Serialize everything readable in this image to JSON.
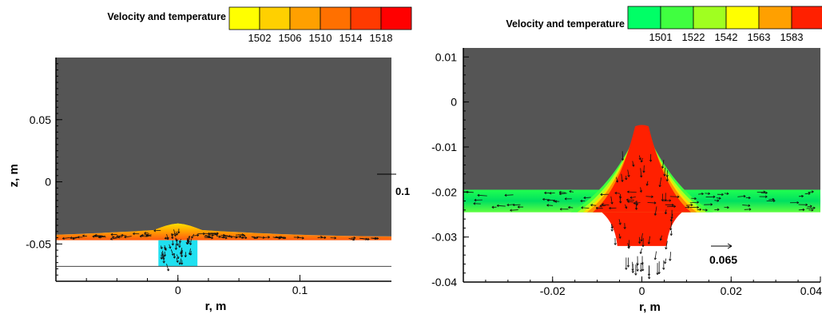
{
  "chart_data": [
    {
      "type": "heatmap",
      "title": "",
      "xlabel": "r, m",
      "ylabel": "z, m",
      "xlim": [
        -0.1,
        0.175
      ],
      "ylim": [
        -0.08,
        0.1
      ],
      "x_ticks": [
        {
          "v": 0,
          "label": "0"
        },
        {
          "v": 0.1,
          "label": "0.1"
        }
      ],
      "y_ticks": [
        {
          "v": 0.05,
          "label": "0.05"
        },
        {
          "v": 0,
          "label": "0"
        },
        {
          "v": -0.05,
          "label": "-0.05"
        }
      ],
      "background_color": "#555555",
      "colorbar": {
        "label": "Velocity and temperature",
        "tick_values": [
          1502,
          1506,
          1510,
          1514,
          1518
        ],
        "tick_labels": [
          "1502",
          "1506",
          "1510",
          "1514",
          "1518"
        ],
        "colors": [
          "#ffff00",
          "#ffd000",
          "#ffa000",
          "#ff7000",
          "#ff3a00",
          "#ff0000"
        ]
      },
      "vector_reference": {
        "label": "0.1",
        "placement": "right edge, near z=-0.01"
      },
      "melt_region": {
        "type": "layer",
        "z_base": -0.047,
        "z_top_center": -0.033,
        "z_top_edge": -0.044
      },
      "solid_region": {
        "color": "#20e0f0",
        "r_range": [
          -0.016,
          0.016
        ],
        "z_range": [
          -0.068,
          -0.047
        ]
      },
      "baseline_z": -0.068
    },
    {
      "type": "heatmap",
      "title": "",
      "xlabel": "r, m",
      "ylabel": "",
      "xlim": [
        -0.04,
        0.04
      ],
      "ylim": [
        -0.04,
        0.012
      ],
      "x_ticks": [
        {
          "v": -0.02,
          "label": "-0.02"
        },
        {
          "v": 0,
          "label": "0"
        },
        {
          "v": 0.02,
          "label": "0.02"
        },
        {
          "v": 0.04,
          "label": "0.04"
        }
      ],
      "y_ticks": [
        {
          "v": 0.01,
          "label": "0.01"
        },
        {
          "v": 0,
          "label": "0"
        },
        {
          "v": -0.01,
          "label": "-0.01"
        },
        {
          "v": -0.02,
          "label": "-0.02"
        },
        {
          "v": -0.03,
          "label": "-0.03"
        },
        {
          "v": -0.04,
          "label": "-0.04"
        }
      ],
      "background_color": "#555555",
      "colorbar": {
        "label": "Velocity and temperature",
        "tick_values": [
          1501,
          1522,
          1542,
          1563,
          1583
        ],
        "tick_labels": [
          "1501",
          "1522",
          "1542",
          "1563",
          "1583"
        ],
        "colors": [
          "#00ff66",
          "#40ff40",
          "#a0ff20",
          "#ffff00",
          "#ffa000",
          "#ff2000"
        ]
      },
      "vector_reference": {
        "label": "0.065",
        "placement": "lower right"
      },
      "melt_region": {
        "type": "layer",
        "z_top": -0.0195,
        "z_base": -0.0245
      },
      "peak_region": {
        "apex_z": -0.007,
        "base_halfwidth": 0.012,
        "base_z": -0.0245,
        "neck_halfwidth": 0.007
      },
      "jet_region": {
        "r_range": [
          -0.006,
          0.006
        ],
        "z_bottom": -0.032
      }
    }
  ]
}
